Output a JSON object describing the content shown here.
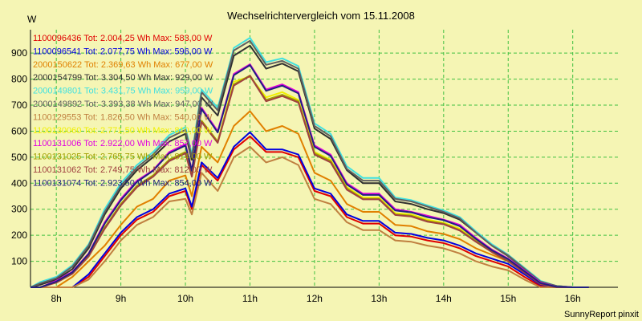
{
  "chart_data": {
    "type": "line",
    "title": "Wechselrichtervergleich vom 15.11.2008",
    "ylabel": "W",
    "xlabel": "",
    "footer": "SunnyReport pinxit",
    "xlim": [
      7.6,
      16.7
    ],
    "ylim": [
      0,
      990
    ],
    "x_ticks": [
      8,
      9,
      10,
      11,
      12,
      13,
      14,
      15,
      16
    ],
    "x_tick_labels": [
      "8h",
      "9h",
      "10h",
      "11h",
      "12h",
      "13h",
      "14h",
      "15h",
      "16h"
    ],
    "y_ticks": [
      100,
      200,
      300,
      400,
      500,
      600,
      700,
      800,
      900
    ],
    "y_tick_labels": [
      "100",
      "200",
      "300",
      "400",
      "500",
      "600",
      "700",
      "800",
      "900"
    ],
    "grid": true,
    "legend_position": "top-left",
    "x": [
      7.6,
      7.75,
      8.0,
      8.25,
      8.5,
      8.75,
      9.0,
      9.25,
      9.5,
      9.75,
      10.0,
      10.1,
      10.25,
      10.5,
      10.75,
      11.0,
      11.25,
      11.5,
      11.75,
      12.0,
      12.25,
      12.5,
      12.75,
      13.0,
      13.25,
      13.5,
      13.75,
      14.0,
      14.25,
      14.5,
      14.75,
      15.0,
      15.25,
      15.5,
      15.75,
      16.0,
      16.25
    ],
    "series": [
      {
        "name": "1100096436",
        "legend": "1100096436 Tot: 2.004,25 Wh Max: 583,00 W",
        "color": "#e00000",
        "values": [
          0,
          0,
          0,
          0,
          40,
          120,
          200,
          260,
          290,
          350,
          370,
          300,
          470,
          410,
          530,
          580,
          520,
          520,
          500,
          370,
          350,
          270,
          245,
          245,
          200,
          195,
          180,
          170,
          150,
          120,
          100,
          80,
          40,
          5,
          0,
          0,
          0
        ]
      },
      {
        "name": "1100096541",
        "legend": "1100096541 Tot: 2.077,75 Wh Max: 596,00 W",
        "color": "#0000e0",
        "values": [
          0,
          0,
          0,
          0,
          50,
          130,
          210,
          270,
          300,
          360,
          380,
          310,
          480,
          420,
          540,
          596,
          530,
          530,
          510,
          380,
          360,
          280,
          255,
          255,
          210,
          205,
          190,
          180,
          160,
          130,
          110,
          90,
          50,
          10,
          0,
          0,
          0
        ]
      },
      {
        "name": "2000150622",
        "legend": "2000150622 Tot: 2.369,63 Wh Max: 677,00 W",
        "color": "#e08000",
        "values": [
          0,
          0,
          0,
          40,
          100,
          160,
          240,
          310,
          340,
          410,
          430,
          350,
          540,
          480,
          620,
          677,
          600,
          620,
          590,
          440,
          410,
          320,
          290,
          290,
          240,
          235,
          215,
          205,
          185,
          150,
          125,
          100,
          60,
          15,
          0,
          0,
          0
        ]
      },
      {
        "name": "2000154799",
        "legend": "2000154799 Tot: 3.304,50 Wh Max: 929,00 W",
        "color": "#303030",
        "values": [
          0,
          10,
          30,
          70,
          150,
          280,
          380,
          450,
          500,
          560,
          590,
          490,
          730,
          660,
          890,
          929,
          840,
          860,
          830,
          610,
          570,
          450,
          400,
          400,
          330,
          320,
          300,
          285,
          260,
          210,
          160,
          120,
          70,
          20,
          5,
          0,
          0
        ]
      },
      {
        "name": "2000149801",
        "legend": "2000149801 Tot: 3.431,75 Wh Max: 959,00 W",
        "color": "#40e0e0",
        "values": [
          0,
          20,
          40,
          85,
          165,
          300,
          400,
          470,
          520,
          585,
          615,
          510,
          760,
          690,
          920,
          959,
          865,
          880,
          850,
          630,
          590,
          465,
          420,
          420,
          345,
          335,
          315,
          295,
          270,
          215,
          165,
          125,
          75,
          25,
          5,
          0,
          0
        ]
      },
      {
        "name": "2000149892",
        "legend": "2000149892 Tot: 3.393,38 Wh Max: 947,00 W",
        "color": "#606060",
        "values": [
          0,
          15,
          35,
          80,
          160,
          290,
          390,
          460,
          510,
          575,
          605,
          500,
          750,
          680,
          910,
          947,
          855,
          870,
          840,
          620,
          580,
          455,
          410,
          410,
          340,
          330,
          310,
          290,
          265,
          210,
          160,
          122,
          72,
          22,
          5,
          0,
          0
        ]
      },
      {
        "name": "1100129553",
        "legend": "1100129553 Tot: 1.826,50 Wh Max: 540,00 W",
        "color": "#c08040",
        "values": [
          0,
          0,
          0,
          0,
          30,
          100,
          180,
          240,
          270,
          330,
          340,
          280,
          440,
          370,
          500,
          540,
          480,
          500,
          470,
          340,
          320,
          250,
          220,
          220,
          180,
          175,
          160,
          150,
          130,
          100,
          80,
          65,
          30,
          0,
          0,
          0,
          0
        ]
      },
      {
        "name": "1100130060",
        "legend": "1100130060 Tot: 2.771,50 Wh Max: 810,00 W",
        "color": "#f0f000",
        "values": [
          0,
          0,
          20,
          55,
          120,
          230,
          320,
          390,
          430,
          490,
          520,
          430,
          640,
          560,
          790,
          810,
          730,
          750,
          720,
          520,
          490,
          385,
          345,
          345,
          285,
          280,
          260,
          248,
          225,
          180,
          140,
          105,
          60,
          15,
          0,
          0,
          0
        ]
      },
      {
        "name": "1100131006",
        "legend": "1100131006 Tot: 2.922,00 Wh Max: 857,00 W",
        "color": "#e000e0",
        "values": [
          0,
          0,
          25,
          60,
          130,
          250,
          340,
          410,
          450,
          520,
          550,
          450,
          690,
          600,
          820,
          857,
          760,
          780,
          750,
          545,
          510,
          400,
          360,
          360,
          300,
          290,
          275,
          260,
          240,
          190,
          145,
          110,
          65,
          18,
          2,
          0,
          0
        ]
      },
      {
        "name": "1100131025",
        "legend": "1100131025 Tot: 2.765,75 Wh Max: 814,00 W",
        "color": "#a0a000",
        "values": [
          0,
          0,
          20,
          55,
          120,
          230,
          320,
          390,
          430,
          490,
          520,
          430,
          640,
          560,
          780,
          814,
          720,
          740,
          715,
          515,
          485,
          380,
          340,
          340,
          280,
          275,
          255,
          245,
          220,
          178,
          138,
          103,
          58,
          14,
          0,
          0,
          0
        ]
      },
      {
        "name": "1100131062",
        "legend": "1100131062 Tot: 2.749,75 Wh Max: 812,00 W",
        "color": "#a04040",
        "values": [
          0,
          0,
          18,
          52,
          118,
          225,
          315,
          385,
          425,
          485,
          515,
          425,
          635,
          555,
          775,
          812,
          715,
          735,
          710,
          510,
          480,
          375,
          338,
          338,
          278,
          272,
          252,
          242,
          218,
          175,
          135,
          100,
          56,
          12,
          0,
          0,
          0
        ]
      },
      {
        "name": "1100131074",
        "legend": "1100131074 Tot: 2.923,50 Wh Max: 854,00 W",
        "color": "#202080",
        "values": [
          0,
          0,
          22,
          58,
          128,
          245,
          335,
          405,
          448,
          515,
          545,
          448,
          685,
          595,
          815,
          854,
          755,
          775,
          745,
          540,
          505,
          395,
          355,
          355,
          295,
          288,
          270,
          258,
          235,
          186,
          142,
          108,
          62,
          16,
          2,
          0,
          0
        ]
      }
    ]
  }
}
